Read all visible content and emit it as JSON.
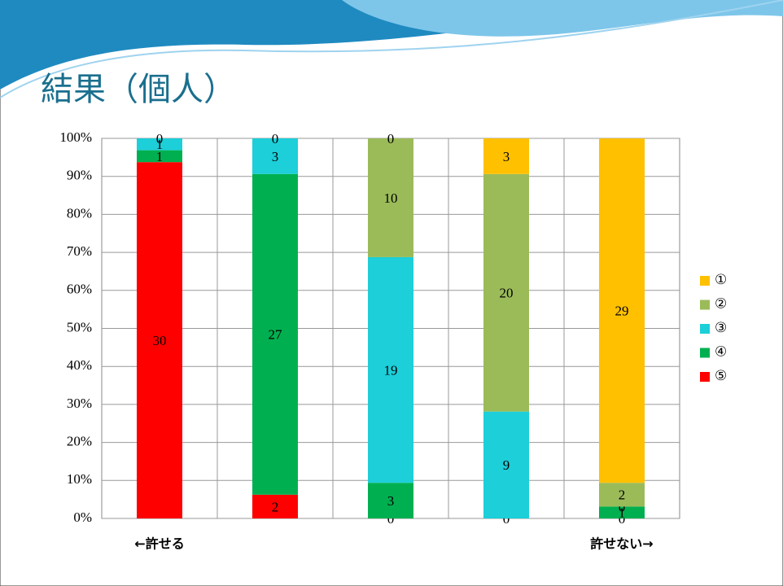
{
  "chart_data": {
    "type": "stacked_percent_bar",
    "title": "結果（個人）",
    "categories": [
      "←許せる",
      null,
      null,
      null,
      "許せない→"
    ],
    "series": [
      {
        "name": "①",
        "color": "#ffc000",
        "values": [
          null,
          null,
          0,
          3,
          29
        ]
      },
      {
        "name": "②",
        "color": "#9bbb59",
        "values": [
          0,
          0,
          10,
          20,
          2
        ]
      },
      {
        "name": "③",
        "color": "#1ccfd9",
        "values": [
          1,
          3,
          19,
          9,
          0
        ]
      },
      {
        "name": "④",
        "color": "#00b050",
        "values": [
          1,
          27,
          3,
          0,
          1
        ]
      },
      {
        "name": "⑤",
        "color": "#ff0000",
        "values": [
          30,
          2,
          0,
          null,
          0
        ]
      }
    ],
    "ylim": [
      0,
      100
    ],
    "yticks": [
      {
        "value": 0,
        "label": "0%"
      },
      {
        "value": 10,
        "label": "10%"
      },
      {
        "value": 20,
        "label": "20%"
      },
      {
        "value": 30,
        "label": "30%"
      },
      {
        "value": 40,
        "label": "40%"
      },
      {
        "value": 50,
        "label": "50%"
      },
      {
        "value": 60,
        "label": "60%"
      },
      {
        "value": 70,
        "label": "70%"
      },
      {
        "value": 80,
        "label": "80%"
      },
      {
        "value": 90,
        "label": "90%"
      },
      {
        "value": 100,
        "label": "100%"
      }
    ],
    "grid": true,
    "legend": "right"
  }
}
